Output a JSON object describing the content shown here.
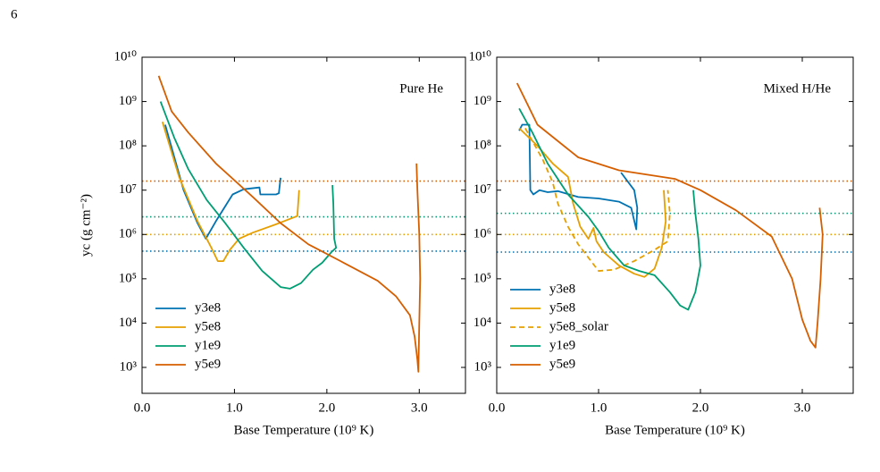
{
  "page_number": "6",
  "chart_data": [
    {
      "type": "line",
      "yscale": "log",
      "annotation": "Pure He",
      "xlabel": "Base Temperature (10⁹ K)",
      "ylabel": "yc (g cm⁻²)",
      "xlim": [
        0,
        3.5
      ],
      "ylim": [
        260,
        10000000000.0
      ],
      "xticks": [
        {
          "value": 0,
          "label": "0.0"
        },
        {
          "value": 1,
          "label": "1.0"
        },
        {
          "value": 2,
          "label": "2.0"
        },
        {
          "value": 3,
          "label": "3.0"
        }
      ],
      "yticks": [
        {
          "value": 1000.0,
          "label": "10³"
        },
        {
          "value": 10000.0,
          "label": "10⁴"
        },
        {
          "value": 100000.0,
          "label": "10⁵"
        },
        {
          "value": 1000000.0,
          "label": "10⁶"
        },
        {
          "value": 10000000.0,
          "label": "10⁷"
        },
        {
          "value": 100000000.0,
          "label": "10⁸"
        },
        {
          "value": 1000000000.0,
          "label": "10⁹"
        },
        {
          "value": 10000000000.0,
          "label": "10¹⁰"
        }
      ],
      "legend": "lower left",
      "hlines": [
        {
          "color": "#d55e00",
          "value": 16000000.0
        },
        {
          "color": "#009e73",
          "value": 2500000.0
        },
        {
          "color": "#e69f00",
          "value": 1000000.0
        },
        {
          "color": "#0072b2",
          "value": 420000.0
        }
      ],
      "series": [
        {
          "name": "y3e8",
          "color": "#0072b2",
          "x": [
            0.25,
            0.45,
            0.6,
            0.69,
            0.8,
            0.98,
            1.1,
            1.27,
            1.28,
            1.45,
            1.48,
            1.5
          ],
          "values": [
            300000000.0,
            10000000.0,
            1800000.0,
            800000.0,
            2000000.0,
            8000000.0,
            10500000.0,
            11500000.0,
            8000000.0,
            8000000.0,
            8500000.0,
            19000000.0
          ]
        },
        {
          "name": "y5e8",
          "color": "#e69f00",
          "x": [
            0.22,
            0.4,
            0.6,
            0.75,
            0.82,
            0.88,
            0.95,
            1.05,
            1.2,
            1.45,
            1.68,
            1.7
          ],
          "values": [
            350000000.0,
            20000000.0,
            2000000.0,
            500000.0,
            250000.0,
            250000.0,
            450000.0,
            800000.0,
            1100000.0,
            1700000.0,
            2600000.0,
            10000000.0
          ]
        },
        {
          "name": "y1e9",
          "color": "#009e73",
          "x": [
            0.2,
            0.35,
            0.5,
            0.7,
            0.9,
            1.1,
            1.3,
            1.5,
            1.6,
            1.72,
            1.85,
            1.95,
            2.05,
            2.1,
            2.08,
            2.07,
            2.06
          ],
          "values": [
            1000000000.0,
            150000000.0,
            30000000.0,
            6000000.0,
            1800000.0,
            500000.0,
            150000.0,
            65000.0,
            60000.0,
            80000.0,
            160000.0,
            230000.0,
            400000.0,
            500000.0,
            800000.0,
            5000000.0,
            13000000.0
          ]
        },
        {
          "name": "y5e9",
          "color": "#d55e00",
          "x": [
            0.18,
            0.32,
            0.5,
            0.8,
            1.2,
            1.5,
            1.8,
            2.2,
            2.55,
            2.75,
            2.9,
            2.95,
            2.98,
            2.99,
            3.0,
            3.01,
            3.0,
            2.98,
            2.97
          ],
          "values": [
            3800000000.0,
            600000000.0,
            200000000.0,
            40000000.0,
            7000000.0,
            1800000.0,
            600000.0,
            220000.0,
            90000.0,
            40000.0,
            15000.0,
            5000.0,
            1500.0,
            800,
            10000.0,
            100000.0,
            1000000.0,
            10000000.0,
            40000000.0
          ]
        }
      ]
    },
    {
      "type": "line",
      "yscale": "log",
      "annotation": "Mixed H/He",
      "xlabel": "Base Temperature (10⁹ K)",
      "xlim": [
        0,
        3.5
      ],
      "ylim": [
        260,
        10000000000.0
      ],
      "xticks": [
        {
          "value": 0,
          "label": "0.0"
        },
        {
          "value": 1,
          "label": "1.0"
        },
        {
          "value": 2,
          "label": "2.0"
        },
        {
          "value": 3,
          "label": "3.0"
        }
      ],
      "yticks": [
        {
          "value": 1000.0,
          "label": "10³"
        },
        {
          "value": 10000.0,
          "label": "10⁴"
        },
        {
          "value": 100000.0,
          "label": "10⁵"
        },
        {
          "value": 1000000.0,
          "label": "10⁶"
        },
        {
          "value": 10000000.0,
          "label": "10⁷"
        },
        {
          "value": 100000000.0,
          "label": "10⁸"
        },
        {
          "value": 1000000000.0,
          "label": "10⁹"
        },
        {
          "value": 10000000000.0,
          "label": "10¹⁰"
        }
      ],
      "legend": "lower left",
      "hlines": [
        {
          "color": "#d55e00",
          "value": 16000000.0
        },
        {
          "color": "#009e73",
          "value": 3000000.0
        },
        {
          "color": "#e69f00",
          "value": 1000000.0
        },
        {
          "color": "#0072b2",
          "value": 400000.0
        }
      ],
      "series": [
        {
          "name": "y3e8",
          "color": "#0072b2",
          "x": [
            0.22,
            0.25,
            0.32,
            0.33,
            0.36,
            0.42,
            0.5,
            0.6,
            0.8,
            1.0,
            1.2,
            1.32,
            1.37,
            1.38,
            1.35,
            1.22
          ],
          "values": [
            220000000.0,
            300000000.0,
            300000000.0,
            10000000.0,
            8000000.0,
            10000000.0,
            9000000.0,
            9500000.0,
            7000000.0,
            6500000.0,
            5500000.0,
            4000000.0,
            1300000.0,
            4000000.0,
            10000000.0,
            25000000.0
          ]
        },
        {
          "name": "y5e8",
          "color": "#e69f00",
          "x": [
            0.22,
            0.4,
            0.55,
            0.7,
            0.75,
            0.82,
            0.9,
            0.95,
            0.98,
            1.05,
            1.2,
            1.35,
            1.45,
            1.55,
            1.62,
            1.66,
            1.64
          ],
          "values": [
            250000000.0,
            100000000.0,
            40000000.0,
            20000000.0,
            5000000.0,
            1500000.0,
            800000.0,
            1400000.0,
            700000.0,
            400000.0,
            200000.0,
            130000.0,
            110000.0,
            170000.0,
            500000.0,
            2000000.0,
            10000000.0
          ]
        },
        {
          "name": "y5e8_solar",
          "color": "#e69f00",
          "dashed": true,
          "x": [
            0.28,
            0.45,
            0.55,
            0.6,
            0.7,
            0.8,
            0.9,
            1.0,
            1.15,
            1.35,
            1.55,
            1.68,
            1.7,
            1.68
          ],
          "values": [
            250000000.0,
            50000000.0,
            15000000.0,
            5000000.0,
            1500000.0,
            600000.0,
            300000.0,
            150000.0,
            160000.0,
            250000.0,
            450000.0,
            700000.0,
            3000000.0,
            10000000.0
          ]
        },
        {
          "name": "y1e9",
          "color": "#009e73",
          "x": [
            0.22,
            0.35,
            0.5,
            0.7,
            0.9,
            1.0,
            1.1,
            1.25,
            1.4,
            1.55,
            1.7,
            1.8,
            1.88,
            1.95,
            2.0,
            1.98,
            1.95,
            1.93
          ],
          "values": [
            700000000.0,
            200000000.0,
            40000000.0,
            8000000.0,
            2500000.0,
            1200000.0,
            500000.0,
            200000.0,
            150000.0,
            120000.0,
            50000.0,
            25000.0,
            20000.0,
            50000.0,
            200000.0,
            800000.0,
            3000000.0,
            10000000.0
          ]
        },
        {
          "name": "y5e9",
          "color": "#d55e00",
          "x": [
            0.2,
            0.4,
            0.8,
            1.2,
            1.75,
            2.0,
            2.35,
            2.7,
            2.9,
            3.0,
            3.08,
            3.13,
            3.15,
            3.18,
            3.2,
            3.17
          ],
          "values": [
            2600000000.0,
            300000000.0,
            55000000.0,
            28000000.0,
            18000000.0,
            10000000.0,
            3500000.0,
            900000.0,
            100000.0,
            12000.0,
            4000.0,
            2800.0,
            10000.0,
            100000.0,
            1000000.0,
            4000000.0
          ]
        }
      ]
    }
  ]
}
